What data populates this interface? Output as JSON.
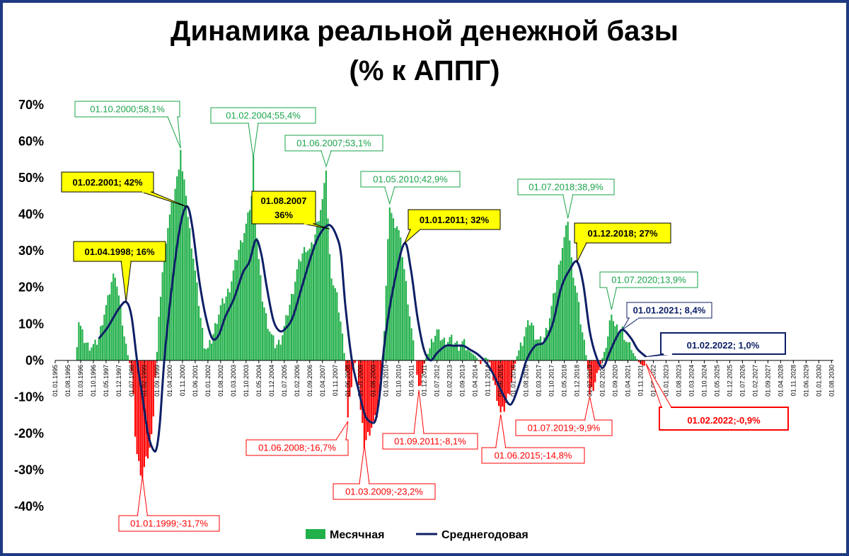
{
  "chart_data": {
    "type": "bar+line",
    "title_line1": "Динамика реальной денежной базы",
    "title_line2": "(% к АППГ)",
    "ylim": [
      -40,
      70
    ],
    "yticks": [
      70,
      60,
      50,
      40,
      30,
      20,
      10,
      0,
      -10,
      -20,
      -30,
      -40
    ],
    "ytick_labels": [
      "70%",
      "60%",
      "50%",
      "40%",
      "30%",
      "20%",
      "10%",
      "0%",
      "-10%",
      "-20%",
      "-30%",
      "-40%"
    ],
    "x_range": [
      1995.0,
      2030.67
    ],
    "x_tick_labels": [
      "01.01.1995",
      "01.08.1995",
      "01.03.1996",
      "01.10.1996",
      "01.05.1997",
      "01.12.1997",
      "01.07.1998",
      "01.02.1999",
      "01.09.1999",
      "01.04.2000",
      "01.11.2000",
      "01.06.2001",
      "01.01.2002",
      "01.08.2002",
      "01.03.2003",
      "01.10.2003",
      "01.05.2004",
      "01.12.2004",
      "01.07.2005",
      "01.02.2006",
      "01.09.2006",
      "01.04.2007",
      "01.11.2007",
      "01.06.2008",
      "01.01.2009",
      "01.08.2009",
      "01.03.2010",
      "01.10.2010",
      "01.05.2011",
      "01.12.2011",
      "01.07.2012",
      "01.02.2013",
      "01.09.2013",
      "01.04.2014",
      "01.11.2014",
      "01.06.2015",
      "01.01.2016",
      "01.08.2016",
      "01.03.2017",
      "01.10.2017",
      "01.05.2018",
      "01.12.2018",
      "01.07.2019",
      "01.02.2020",
      "01.09.2020",
      "01.04.2021",
      "01.11.2021",
      "01.06.2022",
      "01.01.2023",
      "01.08.2023",
      "01.03.2024",
      "01.10.2024",
      "01.05.2025",
      "01.12.2025",
      "01.07.2026",
      "01.02.2027",
      "01.09.2027",
      "01.04.2028",
      "01.11.2028",
      "01.06.2029",
      "01.01.2030",
      "01.08.2030"
    ],
    "series": [
      {
        "name": "Месячная",
        "kind": "bar",
        "color_positive": "#22b04a",
        "color_negative": "#ff0000",
        "anchors": [
          [
            1996.0,
            5
          ],
          [
            1996.08,
            11
          ],
          [
            1996.3,
            6
          ],
          [
            1996.5,
            4
          ],
          [
            1996.8,
            4
          ],
          [
            1997.0,
            6
          ],
          [
            1997.2,
            12
          ],
          [
            1997.4,
            16
          ],
          [
            1997.6,
            22
          ],
          [
            1997.75,
            24
          ],
          [
            1997.9,
            18
          ],
          [
            1998.05,
            12
          ],
          [
            1998.2,
            5
          ],
          [
            1998.35,
            1
          ],
          [
            1998.5,
            -3
          ],
          [
            1998.6,
            -12
          ],
          [
            1998.7,
            -24
          ],
          [
            1998.85,
            -29
          ],
          [
            1999.0,
            -31.7
          ],
          [
            1999.15,
            -28
          ],
          [
            1999.3,
            -25
          ],
          [
            1999.45,
            -20
          ],
          [
            1999.55,
            -8
          ],
          [
            1999.62,
            0
          ],
          [
            1999.68,
            3
          ],
          [
            1999.8,
            16
          ],
          [
            2000.0,
            30
          ],
          [
            2000.2,
            38
          ],
          [
            2000.4,
            44
          ],
          [
            2000.6,
            50
          ],
          [
            2000.75,
            58.1
          ],
          [
            2000.85,
            50
          ],
          [
            2001.0,
            46
          ],
          [
            2001.1,
            38
          ],
          [
            2001.3,
            30
          ],
          [
            2001.5,
            20
          ],
          [
            2001.7,
            10
          ],
          [
            2001.85,
            4
          ],
          [
            2002.0,
            3
          ],
          [
            2002.2,
            6
          ],
          [
            2002.4,
            11
          ],
          [
            2002.6,
            15
          ],
          [
            2002.8,
            17
          ],
          [
            2003.0,
            20
          ],
          [
            2003.2,
            25
          ],
          [
            2003.4,
            30
          ],
          [
            2003.6,
            34
          ],
          [
            2003.8,
            38
          ],
          [
            2004.0,
            45
          ],
          [
            2004.08,
            55.4
          ],
          [
            2004.2,
            38
          ],
          [
            2004.35,
            26
          ],
          [
            2004.5,
            17
          ],
          [
            2004.7,
            11
          ],
          [
            2004.9,
            7
          ],
          [
            2005.1,
            4
          ],
          [
            2005.3,
            5
          ],
          [
            2005.5,
            9
          ],
          [
            2005.7,
            14
          ],
          [
            2005.9,
            19
          ],
          [
            2006.1,
            25
          ],
          [
            2006.3,
            29
          ],
          [
            2006.5,
            31
          ],
          [
            2006.7,
            30
          ],
          [
            2006.9,
            34
          ],
          [
            2007.1,
            40
          ],
          [
            2007.3,
            45
          ],
          [
            2007.42,
            53.1
          ],
          [
            2007.55,
            30
          ],
          [
            2007.7,
            22
          ],
          [
            2007.9,
            18
          ],
          [
            2008.1,
            10
          ],
          [
            2008.25,
            2
          ],
          [
            2008.35,
            -4
          ],
          [
            2008.42,
            -16.7
          ],
          [
            2008.55,
            -8
          ],
          [
            2008.7,
            -1
          ],
          [
            2008.85,
            0
          ],
          [
            2009.0,
            -14
          ],
          [
            2009.17,
            -23.2
          ],
          [
            2009.3,
            -21
          ],
          [
            2009.5,
            -18
          ],
          [
            2009.7,
            -16
          ],
          [
            2009.85,
            -12
          ],
          [
            2010.0,
            1
          ],
          [
            2010.1,
            10
          ],
          [
            2010.2,
            25
          ],
          [
            2010.33,
            42.9
          ],
          [
            2010.5,
            38
          ],
          [
            2010.7,
            37
          ],
          [
            2010.9,
            30
          ],
          [
            2011.1,
            20
          ],
          [
            2011.3,
            10
          ],
          [
            2011.5,
            0
          ],
          [
            2011.67,
            -8.1
          ],
          [
            2011.8,
            -4
          ],
          [
            2011.95,
            0
          ],
          [
            2012.1,
            2
          ],
          [
            2012.3,
            6
          ],
          [
            2012.5,
            8
          ],
          [
            2012.7,
            6
          ],
          [
            2012.9,
            5
          ],
          [
            2013.1,
            6
          ],
          [
            2013.3,
            5
          ],
          [
            2013.5,
            4
          ],
          [
            2013.7,
            5
          ],
          [
            2013.9,
            3
          ],
          [
            2014.1,
            2
          ],
          [
            2014.3,
            1
          ],
          [
            2014.5,
            -1
          ],
          [
            2014.7,
            1
          ],
          [
            2014.9,
            0
          ],
          [
            2015.1,
            -6
          ],
          [
            2015.3,
            -11
          ],
          [
            2015.42,
            -14.8
          ],
          [
            2015.6,
            -13
          ],
          [
            2015.8,
            -9
          ],
          [
            2016.0,
            -3
          ],
          [
            2016.2,
            2
          ],
          [
            2016.4,
            5
          ],
          [
            2016.6,
            9
          ],
          [
            2016.8,
            11
          ],
          [
            2017.0,
            7
          ],
          [
            2017.2,
            5
          ],
          [
            2017.4,
            6
          ],
          [
            2017.6,
            10
          ],
          [
            2017.8,
            16
          ],
          [
            2018.0,
            22
          ],
          [
            2018.2,
            30
          ],
          [
            2018.4,
            35
          ],
          [
            2018.5,
            38.9
          ],
          [
            2018.65,
            28
          ],
          [
            2018.8,
            22
          ],
          [
            2018.95,
            17
          ],
          [
            2019.1,
            10
          ],
          [
            2019.3,
            3
          ],
          [
            2019.45,
            -4
          ],
          [
            2019.5,
            -9.9
          ],
          [
            2019.7,
            -7
          ],
          [
            2019.9,
            -3
          ],
          [
            2020.05,
            0
          ],
          [
            2020.2,
            3
          ],
          [
            2020.35,
            7
          ],
          [
            2020.5,
            13.9
          ],
          [
            2020.65,
            9
          ],
          [
            2020.85,
            8
          ],
          [
            2021.0,
            8.4
          ],
          [
            2021.2,
            5
          ],
          [
            2021.4,
            3
          ],
          [
            2021.6,
            1
          ],
          [
            2021.8,
            -1
          ],
          [
            2022.0,
            -1.5
          ],
          [
            2022.08,
            -0.9
          ]
        ]
      },
      {
        "name": "Среднегодовая",
        "kind": "line",
        "color": "#0d1f66",
        "anchors": [
          [
            1997.0,
            6
          ],
          [
            1997.4,
            9
          ],
          [
            1997.9,
            14
          ],
          [
            1998.25,
            16
          ],
          [
            1998.5,
            12
          ],
          [
            1998.75,
            0
          ],
          [
            1999.0,
            -10
          ],
          [
            1999.25,
            -20
          ],
          [
            1999.5,
            -24.5
          ],
          [
            1999.65,
            -24
          ],
          [
            1999.8,
            -17
          ],
          [
            2000.0,
            0
          ],
          [
            2000.25,
            15
          ],
          [
            2000.6,
            32
          ],
          [
            2000.85,
            40
          ],
          [
            2001.08,
            42
          ],
          [
            2001.3,
            36
          ],
          [
            2001.6,
            22
          ],
          [
            2001.9,
            12
          ],
          [
            2002.2,
            6
          ],
          [
            2002.5,
            7
          ],
          [
            2002.8,
            12
          ],
          [
            2003.2,
            17
          ],
          [
            2003.6,
            24
          ],
          [
            2003.9,
            27
          ],
          [
            2004.2,
            33
          ],
          [
            2004.45,
            29
          ],
          [
            2004.7,
            20
          ],
          [
            2005.0,
            11
          ],
          [
            2005.3,
            8
          ],
          [
            2005.6,
            9
          ],
          [
            2005.9,
            12
          ],
          [
            2006.3,
            20
          ],
          [
            2006.7,
            28
          ],
          [
            2007.0,
            33
          ],
          [
            2007.3,
            36
          ],
          [
            2007.6,
            37
          ],
          [
            2007.9,
            34
          ],
          [
            2008.1,
            29
          ],
          [
            2008.3,
            15
          ],
          [
            2008.6,
            0
          ],
          [
            2008.9,
            -8
          ],
          [
            2009.2,
            -15
          ],
          [
            2009.5,
            -17
          ],
          [
            2009.7,
            -16
          ],
          [
            2009.9,
            -8
          ],
          [
            2010.1,
            5
          ],
          [
            2010.5,
            20
          ],
          [
            2011.0,
            32
          ],
          [
            2011.3,
            25
          ],
          [
            2011.6,
            12
          ],
          [
            2011.9,
            3
          ],
          [
            2012.2,
            0
          ],
          [
            2012.5,
            2
          ],
          [
            2012.9,
            4
          ],
          [
            2013.3,
            4
          ],
          [
            2013.7,
            4
          ],
          [
            2014.0,
            3
          ],
          [
            2014.4,
            1.5
          ],
          [
            2014.8,
            -1
          ],
          [
            2015.1,
            -4
          ],
          [
            2015.5,
            -9
          ],
          [
            2015.8,
            -12
          ],
          [
            2016.0,
            -11
          ],
          [
            2016.3,
            -6
          ],
          [
            2016.6,
            0
          ],
          [
            2017.0,
            4
          ],
          [
            2017.4,
            5
          ],
          [
            2017.8,
            10
          ],
          [
            2018.2,
            20
          ],
          [
            2018.6,
            25
          ],
          [
            2018.92,
            27
          ],
          [
            2019.2,
            21
          ],
          [
            2019.5,
            8
          ],
          [
            2019.8,
            1
          ],
          [
            2020.1,
            -2
          ],
          [
            2020.4,
            2
          ],
          [
            2020.7,
            6
          ],
          [
            2021.0,
            8.4
          ],
          [
            2021.4,
            6
          ],
          [
            2021.7,
            3
          ],
          [
            2022.08,
            1.0
          ]
        ]
      }
    ],
    "annotations": [
      {
        "text": "01.10.2000;58,1%",
        "x": 2000.75,
        "y": 58.1,
        "style": "green"
      },
      {
        "text": "01.02.2004;55,4%",
        "x": 2004.08,
        "y": 55.4,
        "style": "green"
      },
      {
        "text": "01.06.2007;53,1%",
        "x": 2007.42,
        "y": 53.1,
        "style": "green"
      },
      {
        "text": "01.05.2010;42,9%",
        "x": 2010.33,
        "y": 42.9,
        "style": "green"
      },
      {
        "text": "01.07.2018;38,9%",
        "x": 2018.5,
        "y": 38.9,
        "style": "green"
      },
      {
        "text": "01.07.2020;13,9%",
        "x": 2020.5,
        "y": 13.9,
        "style": "green"
      },
      {
        "text": "01.02.2001; 42%",
        "x": 2001.08,
        "y": 42,
        "style": "yellow"
      },
      {
        "text": "01.08.2007",
        "text2": "36%",
        "x": 2007.58,
        "y": 36,
        "style": "yellow"
      },
      {
        "text": "01.01.2011; 32%",
        "x": 2011.0,
        "y": 32,
        "style": "yellow"
      },
      {
        "text": "01.04.1998; 16%",
        "x": 1998.25,
        "y": 16,
        "style": "yellow"
      },
      {
        "text": "01.12.2018; 27%",
        "x": 2018.92,
        "y": 27,
        "style": "yellow"
      },
      {
        "text": "01.01.2021; 8,4%",
        "x": 2021.0,
        "y": 8.4,
        "style": "navy"
      },
      {
        "text": "01.02.2022; 1,0%",
        "x": 2022.08,
        "y": 1.0,
        "style": "navy-big"
      },
      {
        "text": "01.01.1999;-31,7%",
        "x": 1999.0,
        "y": -31.7,
        "style": "red"
      },
      {
        "text": "01.06.2008;-16,7%",
        "x": 2008.42,
        "y": -16.7,
        "style": "red"
      },
      {
        "text": "01.03.2009;-23,2%",
        "x": 2009.17,
        "y": -23.2,
        "style": "red"
      },
      {
        "text": "01.09.2011;-8,1%",
        "x": 2011.67,
        "y": -8.1,
        "style": "red"
      },
      {
        "text": "01.06.2015;-14,8%",
        "x": 2015.42,
        "y": -14.8,
        "style": "red"
      },
      {
        "text": "01.07.2019;-9,9%",
        "x": 2019.5,
        "y": -9.9,
        "style": "red"
      },
      {
        "text": "01.02.2022;-0,9%",
        "x": 2022.08,
        "y": -0.9,
        "style": "red-big"
      }
    ],
    "legend": [
      {
        "label": "Месячная",
        "type": "bar",
        "color": "#22b04a"
      },
      {
        "label": "Среднегодовая",
        "type": "line",
        "color": "#0d1f66"
      }
    ],
    "legend_position": "bottom-center"
  }
}
